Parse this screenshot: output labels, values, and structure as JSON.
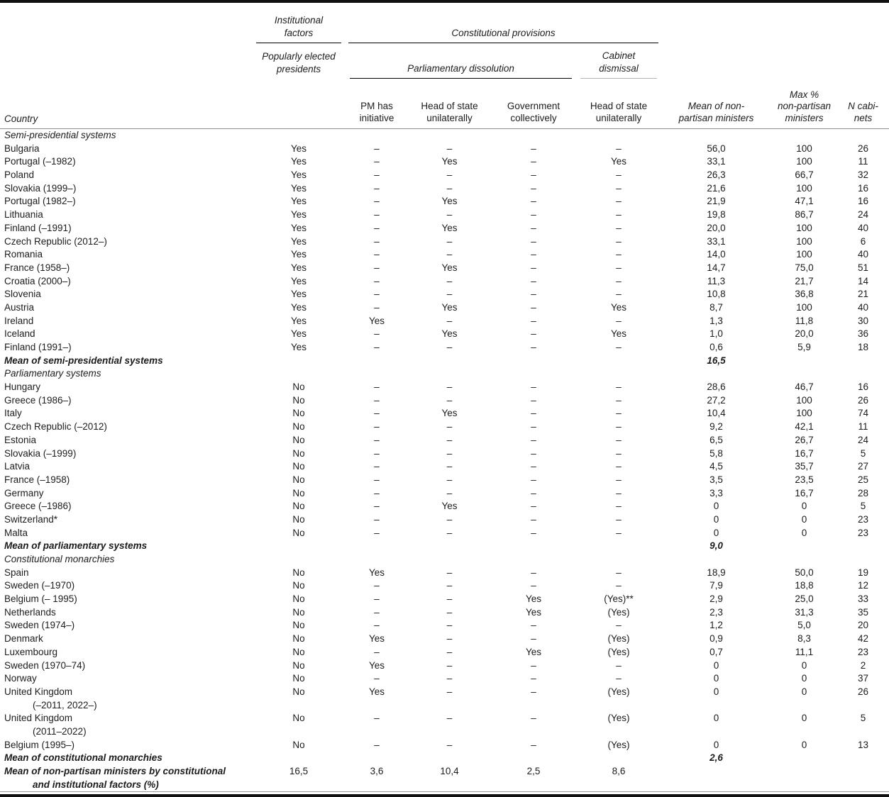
{
  "header": {
    "country_label": "Country",
    "institutional_factors": {
      "lines": [
        "Institutional",
        "factors"
      ]
    },
    "constitutional_provisions": {
      "lines": [
        "Constitutional provisions"
      ]
    },
    "popularly_elected": {
      "lines": [
        "Popularly elected",
        "presidents"
      ]
    },
    "parliamentary_dissolution": {
      "lines": [
        "Parliamentary dissolution"
      ]
    },
    "cabinet_dismissal": {
      "lines": [
        "Cabinet",
        "dismissal"
      ]
    },
    "columns": [
      {
        "lines": [
          "PM has",
          "initiative"
        ]
      },
      {
        "lines": [
          "Head of state",
          "unilaterally"
        ]
      },
      {
        "lines": [
          "Government",
          "collectively"
        ]
      },
      {
        "lines": [
          "Head of state",
          "unilaterally"
        ]
      },
      {
        "lines": [
          "Mean of non-",
          "partisan ministers"
        ]
      },
      {
        "lines": [
          "Max %",
          "non-partisan",
          "ministers"
        ]
      },
      {
        "lines": [
          "N cabi-",
          "nets"
        ]
      }
    ]
  },
  "sections": [
    {
      "label": "Semi-presidential systems",
      "rows": [
        {
          "country": [
            "Bulgaria"
          ],
          "cells": [
            "Yes",
            "–",
            "–",
            "–",
            "–",
            "56,0",
            "100",
            "26"
          ]
        },
        {
          "country": [
            "Portugal (–1982)"
          ],
          "cells": [
            "Yes",
            "–",
            "Yes",
            "–",
            "Yes",
            "33,1",
            "100",
            "11"
          ]
        },
        {
          "country": [
            "Poland"
          ],
          "cells": [
            "Yes",
            "–",
            "–",
            "–",
            "–",
            "26,3",
            "66,7",
            "32"
          ]
        },
        {
          "country": [
            "Slovakia (1999–)"
          ],
          "cells": [
            "Yes",
            "–",
            "–",
            "–",
            "–",
            "21,6",
            "100",
            "16"
          ]
        },
        {
          "country": [
            "Portugal (1982–)"
          ],
          "cells": [
            "Yes",
            "–",
            "Yes",
            "–",
            "–",
            "21,9",
            "47,1",
            "16"
          ]
        },
        {
          "country": [
            "Lithuania"
          ],
          "cells": [
            "Yes",
            "–",
            "–",
            "–",
            "–",
            "19,8",
            "86,7",
            "24"
          ]
        },
        {
          "country": [
            "Finland (–1991)"
          ],
          "cells": [
            "Yes",
            "–",
            "Yes",
            "–",
            "–",
            "20,0",
            "100",
            "40"
          ]
        },
        {
          "country": [
            "Czech Republic (2012–)"
          ],
          "cells": [
            "Yes",
            "–",
            "–",
            "–",
            "–",
            "33,1",
            "100",
            "6"
          ]
        },
        {
          "country": [
            "Romania"
          ],
          "cells": [
            "Yes",
            "–",
            "–",
            "–",
            "–",
            "14,0",
            "100",
            "40"
          ]
        },
        {
          "country": [
            "France (1958–)"
          ],
          "cells": [
            "Yes",
            "–",
            "Yes",
            "–",
            "–",
            "14,7",
            "75,0",
            "51"
          ]
        },
        {
          "country": [
            "Croatia (2000–)"
          ],
          "cells": [
            "Yes",
            "–",
            "–",
            "–",
            "–",
            "11,3",
            "21,7",
            "14"
          ]
        },
        {
          "country": [
            "Slovenia"
          ],
          "cells": [
            "Yes",
            "–",
            "–",
            "–",
            "–",
            "10,8",
            "36,8",
            "21"
          ]
        },
        {
          "country": [
            "Austria"
          ],
          "cells": [
            "Yes",
            "–",
            "Yes",
            "–",
            "Yes",
            "8,7",
            "100",
            "40"
          ]
        },
        {
          "country": [
            "Ireland"
          ],
          "cells": [
            "Yes",
            "Yes",
            "–",
            "–",
            "–",
            "1,3",
            "11,8",
            "30"
          ]
        },
        {
          "country": [
            "Iceland"
          ],
          "cells": [
            "Yes",
            "–",
            "Yes",
            "–",
            "Yes",
            "1,0",
            "20,0",
            "36"
          ]
        },
        {
          "country": [
            "Finland (1991–)"
          ],
          "cells": [
            "Yes",
            "–",
            "–",
            "–",
            "–",
            "0,6",
            "5,9",
            "18"
          ]
        }
      ],
      "mean": {
        "label": "Mean of semi-presidential systems",
        "value": "16,5"
      }
    },
    {
      "label": "Parliamentary systems",
      "rows": [
        {
          "country": [
            "Hungary"
          ],
          "cells": [
            "No",
            "–",
            "–",
            "–",
            "–",
            "28,6",
            "46,7",
            "16"
          ]
        },
        {
          "country": [
            "Greece (1986–)"
          ],
          "cells": [
            "No",
            "–",
            "–",
            "–",
            "–",
            "27,2",
            "100",
            "26"
          ]
        },
        {
          "country": [
            "Italy"
          ],
          "cells": [
            "No",
            "–",
            "Yes",
            "–",
            "–",
            "10,4",
            "100",
            "74"
          ]
        },
        {
          "country": [
            "Czech Republic (–2012)"
          ],
          "cells": [
            "No",
            "–",
            "–",
            "–",
            "–",
            "9,2",
            "42,1",
            "11"
          ]
        },
        {
          "country": [
            "Estonia"
          ],
          "cells": [
            "No",
            "–",
            "–",
            "–",
            "–",
            "6,5",
            "26,7",
            "24"
          ]
        },
        {
          "country": [
            "Slovakia (–1999)"
          ],
          "cells": [
            "No",
            "–",
            "–",
            "–",
            "–",
            "5,8",
            "16,7",
            "5"
          ]
        },
        {
          "country": [
            "Latvia"
          ],
          "cells": [
            "No",
            "–",
            "–",
            "–",
            "–",
            "4,5",
            "35,7",
            "27"
          ]
        },
        {
          "country": [
            "France (–1958)"
          ],
          "cells": [
            "No",
            "–",
            "–",
            "–",
            "–",
            "3,5",
            "23,5",
            "25"
          ]
        },
        {
          "country": [
            "Germany"
          ],
          "cells": [
            "No",
            "–",
            "–",
            "–",
            "–",
            "3,3",
            "16,7",
            "28"
          ]
        },
        {
          "country": [
            "Greece (–1986)"
          ],
          "cells": [
            "No",
            "–",
            "Yes",
            "–",
            "–",
            "0",
            "0",
            "5"
          ]
        },
        {
          "country": [
            "Switzerland*"
          ],
          "cells": [
            "No",
            "–",
            "–",
            "–",
            "–",
            "0",
            "0",
            "23"
          ]
        },
        {
          "country": [
            "Malta"
          ],
          "cells": [
            "No",
            "–",
            "–",
            "–",
            "–",
            "0",
            "0",
            "23"
          ]
        }
      ],
      "mean": {
        "label": "Mean of parliamentary systems",
        "value": "9,0"
      }
    },
    {
      "label": "Constitutional monarchies",
      "rows": [
        {
          "country": [
            "Spain"
          ],
          "cells": [
            "No",
            "Yes",
            "–",
            "–",
            "–",
            "18,9",
            "50,0",
            "19"
          ]
        },
        {
          "country": [
            "Sweden (–1970)"
          ],
          "cells": [
            "No",
            "–",
            "–",
            "–",
            "–",
            "7,9",
            "18,8",
            "12"
          ]
        },
        {
          "country": [
            "Belgium (– 1995)"
          ],
          "cells": [
            "No",
            "–",
            "–",
            "Yes",
            "(Yes)**",
            "2,9",
            "25,0",
            "33"
          ]
        },
        {
          "country": [
            "Netherlands"
          ],
          "cells": [
            "No",
            "–",
            "–",
            "Yes",
            "(Yes)",
            "2,3",
            "31,3",
            "35"
          ]
        },
        {
          "country": [
            "Sweden (1974–)"
          ],
          "cells": [
            "No",
            "–",
            "–",
            "–",
            "–",
            "1,2",
            "5,0",
            "20"
          ]
        },
        {
          "country": [
            "Denmark"
          ],
          "cells": [
            "No",
            "Yes",
            "–",
            "–",
            "(Yes)",
            "0,9",
            "8,3",
            "42"
          ]
        },
        {
          "country": [
            "Luxembourg"
          ],
          "cells": [
            "No",
            "–",
            "–",
            "Yes",
            "(Yes)",
            "0,7",
            "11,1",
            "23"
          ]
        },
        {
          "country": [
            "Sweden (1970–74)"
          ],
          "cells": [
            "No",
            "Yes",
            "–",
            "–",
            "–",
            "0",
            "0",
            "2"
          ]
        },
        {
          "country": [
            "Norway"
          ],
          "cells": [
            "No",
            "–",
            "–",
            "–",
            "–",
            "0",
            "0",
            "37"
          ]
        },
        {
          "country": [
            "United Kingdom",
            "(–2011, 2022–)"
          ],
          "cells": [
            "No",
            "Yes",
            "–",
            "–",
            "(Yes)",
            "0",
            "0",
            "26"
          ]
        },
        {
          "country": [
            "United Kingdom",
            "(2011–2022)"
          ],
          "cells": [
            "No",
            "–",
            "–",
            "–",
            "(Yes)",
            "0",
            "0",
            "5"
          ]
        },
        {
          "country": [
            "Belgium (1995–)"
          ],
          "cells": [
            "No",
            "–",
            "–",
            "–",
            "(Yes)",
            "0",
            "0",
            "13"
          ]
        }
      ],
      "mean": {
        "label": "Mean of constitutional monarchies",
        "value": "2,6"
      }
    }
  ],
  "footer": {
    "label_lines": [
      "Mean of non-partisan ministers by constitutional",
      "and institutional factors (%)"
    ],
    "values": [
      "16,5",
      "3,6",
      "10,4",
      "2,5",
      "8,6"
    ]
  },
  "colors": {
    "rule_dark": "#111111",
    "rule_gray": "#8f8f8f",
    "rule_light": "#b3b3b3",
    "text": "#1c1c1c"
  }
}
